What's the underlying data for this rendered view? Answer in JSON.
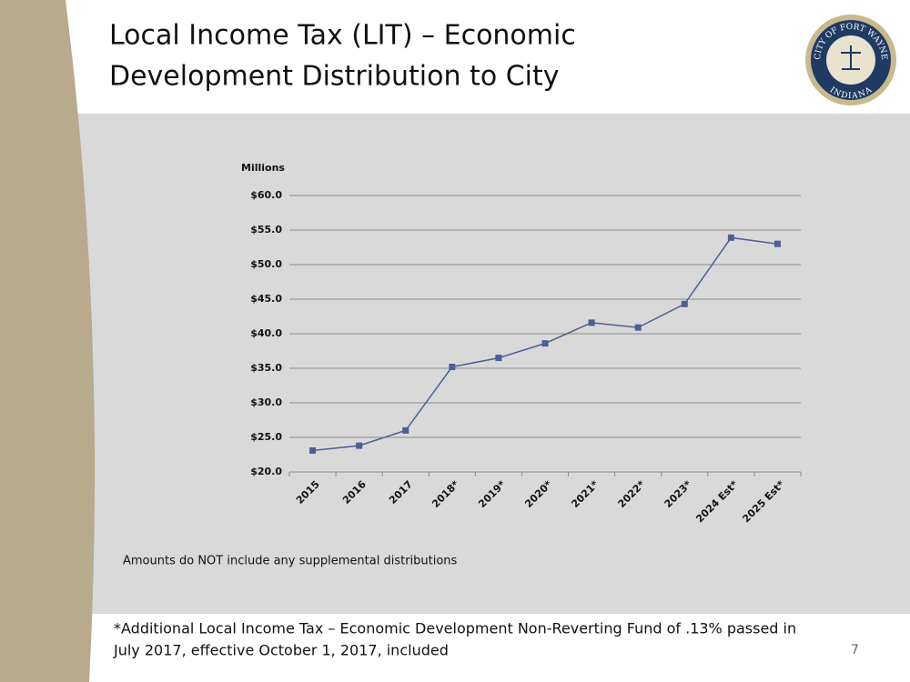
{
  "slide": {
    "title_lines": [
      "Local Income Tax (LIT) – Economic",
      "Development Distribution to City"
    ],
    "logo": {
      "top": "CITY OF FORT WAYNE",
      "bottom": "INDIANA"
    },
    "note": "Amounts do NOT include any supplemental distributions",
    "footnote_lines": [
      "*Additional Local Income Tax – Economic Development Non-Reverting Fund of .13% passed in",
      "July 2017, effective October 1, 2017, included"
    ],
    "page_number": "7"
  },
  "chart_data": {
    "type": "line",
    "y_axis_label": "Millions",
    "categories": [
      "2015",
      "2016",
      "2017",
      "2018*",
      "2019*",
      "2020*",
      "2021*",
      "2022*",
      "2023*",
      "2024 Est*",
      "2025 Est*"
    ],
    "values": [
      23.1,
      23.8,
      26.0,
      35.2,
      36.5,
      38.6,
      41.6,
      40.9,
      44.3,
      53.9,
      53.0
    ],
    "color": "#4a5f94",
    "ylim": [
      20,
      60
    ],
    "yticks": [
      {
        "value": 20,
        "label": "$20.0"
      },
      {
        "value": 25,
        "label": "$25.0"
      },
      {
        "value": 30,
        "label": "$30.0"
      },
      {
        "value": 35,
        "label": "$35.0"
      },
      {
        "value": 40,
        "label": "$40.0"
      },
      {
        "value": 45,
        "label": "$45.0"
      },
      {
        "value": 50,
        "label": "$50.0"
      },
      {
        "value": 55,
        "label": "$55.0"
      },
      {
        "value": 60,
        "label": "$60.0"
      }
    ],
    "grid": true
  }
}
